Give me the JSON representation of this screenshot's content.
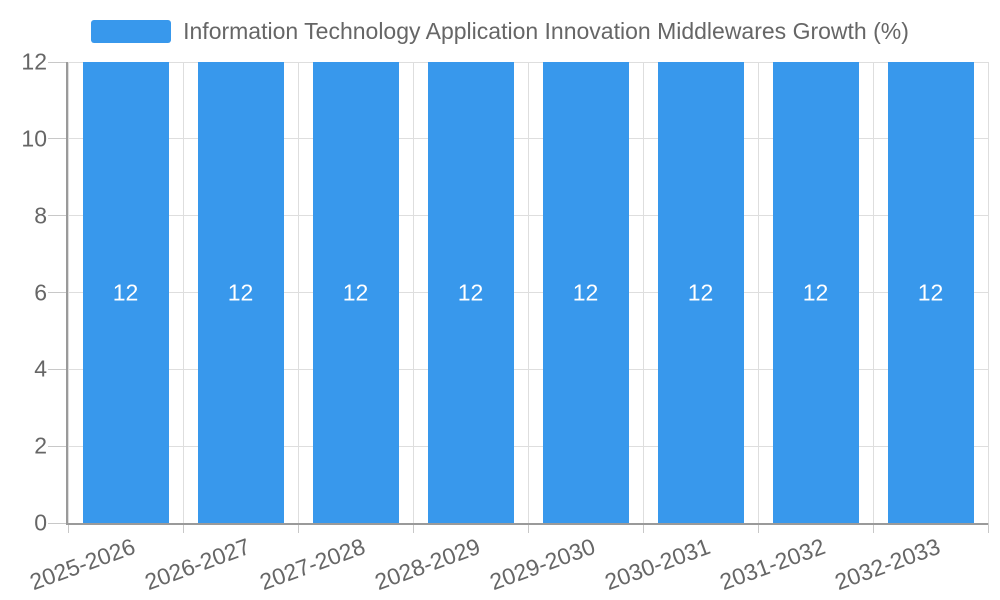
{
  "chart_data": {
    "type": "bar",
    "title": "",
    "legend_label": "Information Technology Application Innovation Middlewares Growth (%)",
    "legend_position": "top",
    "categories": [
      "2025-2026",
      "2026-2027",
      "2027-2028",
      "2028-2029",
      "2029-2030",
      "2030-2031",
      "2031-2032",
      "2032-2033"
    ],
    "series": [
      {
        "name": "Information Technology Application Innovation Middlewares Growth (%)",
        "values": [
          12,
          12,
          12,
          12,
          12,
          12,
          12,
          12
        ]
      }
    ],
    "value_labels": [
      "12",
      "12",
      "12",
      "12",
      "12",
      "12",
      "12",
      "12"
    ],
    "xlabel": "",
    "ylabel": "",
    "ylim": [
      0,
      12
    ],
    "yticks": [
      0,
      2,
      4,
      6,
      8,
      10,
      12
    ],
    "grid": true,
    "colors": {
      "bar": "#3898EC",
      "value_label": "#FFFFFF",
      "grid_line": "#DEDEDE",
      "tick_line": "#C8C8C8",
      "axis_line": "#9A9A9A",
      "text": "#666666"
    }
  }
}
